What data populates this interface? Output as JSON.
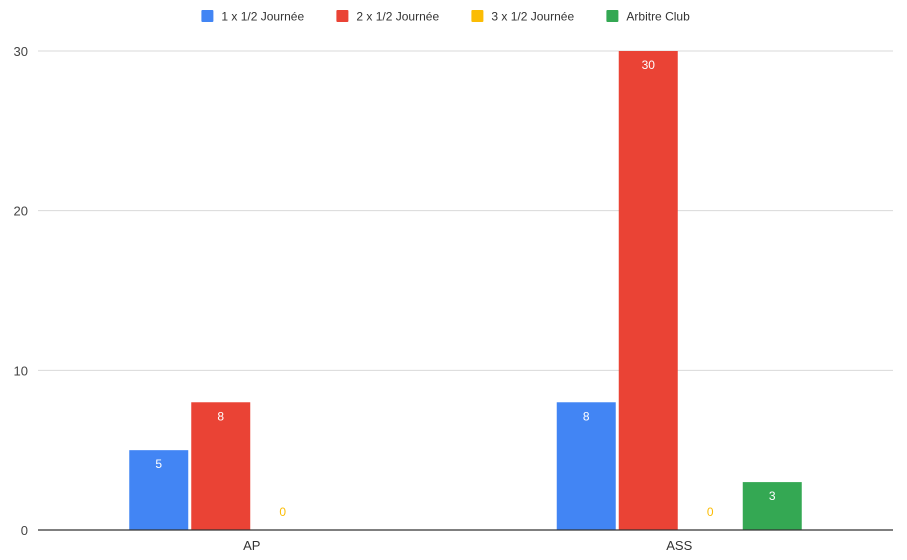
{
  "chart_data": {
    "type": "bar",
    "categories": [
      "AP",
      "ASS"
    ],
    "series": [
      {
        "name": "1 x 1/2 Journée",
        "color": "#4285f4",
        "values": [
          5,
          8
        ],
        "label_color": "#ffffff"
      },
      {
        "name": "2 x 1/2 Journée",
        "color": "#ea4335",
        "values": [
          8,
          30
        ],
        "label_color": "#ffffff"
      },
      {
        "name": "3 x 1/2 Journée",
        "color": "#fbbc04",
        "values": [
          0,
          0
        ],
        "label_color": "#fbbc04"
      },
      {
        "name": "Arbitre Club",
        "color": "#34a853",
        "values": [
          null,
          3
        ],
        "label_color": "#ffffff"
      }
    ],
    "yticks": [
      0,
      10,
      20,
      30
    ],
    "ylim": [
      0,
      30
    ],
    "grid": true,
    "legend": "top-center",
    "title": "",
    "xlabel": "",
    "ylabel": ""
  }
}
